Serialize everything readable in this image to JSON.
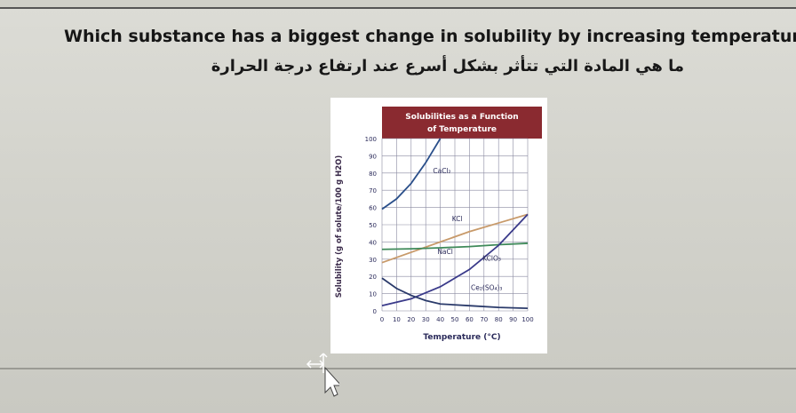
{
  "question": {
    "english": "Which substance has a biggest change in solubility by increasing temperature?",
    "arabic": "ما هي المادة التي تتأثر بشكل أسرع عند ارتفاع درجة الحرارة"
  },
  "chart_data": {
    "type": "line",
    "title": "Solubilities as a Function",
    "subtitle": "of Temperature",
    "xlabel": "Temperature (°C)",
    "ylabel": "Solubility (g of solute/100 g H2O)",
    "xlim": [
      0,
      100
    ],
    "ylim": [
      0,
      100
    ],
    "xticks": [
      "0",
      "10",
      "20",
      "30",
      "40",
      "50",
      "60",
      "70",
      "80",
      "90",
      "100"
    ],
    "yticks": [
      "0",
      "10",
      "20",
      "30",
      "40",
      "50",
      "60",
      "70",
      "80",
      "90",
      "100"
    ],
    "grid": true,
    "header_color": "#8a2a30",
    "series": [
      {
        "name": "CaCl2",
        "color": "#2a4f8a",
        "x": [
          0,
          10,
          20,
          30,
          40
        ],
        "y": [
          59,
          65,
          74,
          86,
          100
        ]
      },
      {
        "name": "KCl",
        "color": "#c89a6a",
        "x": [
          0,
          20,
          40,
          60,
          80,
          100
        ],
        "y": [
          28,
          34,
          40,
          46,
          51,
          56
        ]
      },
      {
        "name": "NaCl",
        "color": "#3f8a5a",
        "x": [
          0,
          20,
          40,
          60,
          80,
          100
        ],
        "y": [
          35.7,
          36,
          36.6,
          37.3,
          38.4,
          39.2
        ]
      },
      {
        "name": "KClO3",
        "color": "#3a3a8a",
        "x": [
          0,
          20,
          40,
          60,
          80,
          100
        ],
        "y": [
          3,
          7,
          14,
          24,
          38,
          56
        ]
      },
      {
        "name": "Ce2(SO4)3",
        "color": "#2a3a6a",
        "x": [
          0,
          10,
          20,
          30,
          40,
          60,
          80,
          100
        ],
        "y": [
          19,
          13,
          9,
          6,
          4,
          3,
          2,
          1.5
        ]
      }
    ],
    "labels": {
      "CaCl2": "CaCl₂",
      "KCl": "KCl",
      "NaCl": "NaCl",
      "KClO3": "KClO₃",
      "Ce2SO43": "Ce₂(SO₄)₃"
    }
  }
}
